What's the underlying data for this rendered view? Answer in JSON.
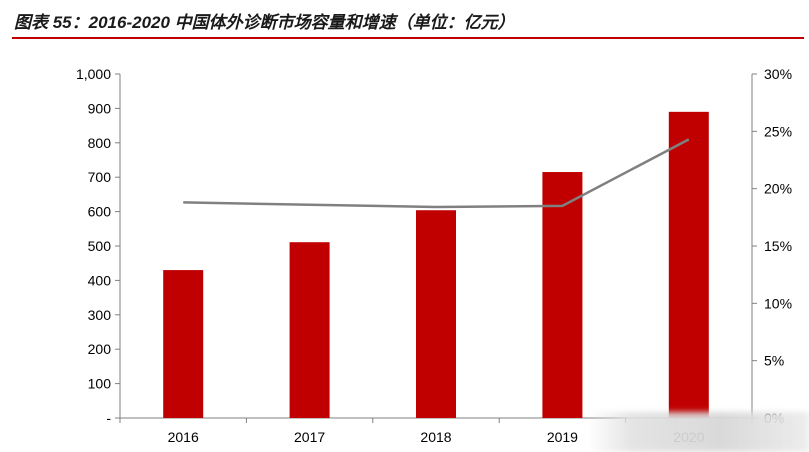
{
  "title": "图表 55：2016-2020 中国体外诊断市场容量和增速（单位：亿元）",
  "colors": {
    "bar": "#c00000",
    "line": "#808080",
    "axis": "#808080",
    "title_rule": "#c00000"
  },
  "chart_data": {
    "type": "bar",
    "categories": [
      "2016",
      "2017",
      "2018",
      "2019",
      "2020"
    ],
    "series": [
      {
        "type": "bar",
        "axis": "left",
        "values": [
          430,
          511,
          604,
          715,
          890
        ]
      },
      {
        "type": "line",
        "axis": "right",
        "values": [
          18.8,
          18.6,
          18.4,
          18.5,
          24.3
        ]
      }
    ],
    "y_left": {
      "range": [
        0,
        1000
      ],
      "ticks": [
        "-",
        "100",
        "200",
        "300",
        "400",
        "500",
        "600",
        "700",
        "800",
        "900",
        "1,000"
      ]
    },
    "y_right": {
      "range": [
        0,
        30
      ],
      "ticks": [
        "0%",
        "5%",
        "10%",
        "15%",
        "20%",
        "25%",
        "30%"
      ]
    },
    "grid": false,
    "legend": "none"
  }
}
